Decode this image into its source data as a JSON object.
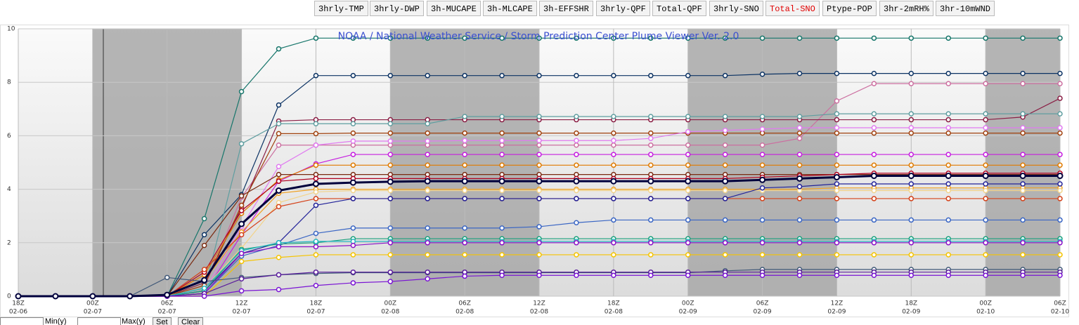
{
  "buttons": [
    "3hrly-TMP",
    "3hrly-DWP",
    "3h-MUCAPE",
    "3h-MLCAPE",
    "3h-EFFSHR",
    "3hrly-QPF",
    "Total-QPF",
    "3hrly-SNO",
    "Total-SNO",
    "Ptype-POP",
    "3hr-2mRH%",
    "3hr-10mWND"
  ],
  "active_button": 8,
  "controls": {
    "min_label": "Min(y)",
    "max_label": "Max(y)",
    "set": "Set",
    "clear": "Clear"
  },
  "chart_data": {
    "type": "line",
    "title": "NOAA / National Weather Service / Storm Prediction Center Plume Viewer Ver. 2.0",
    "categories": [
      {
        "time": "18Z",
        "date": "02-06"
      },
      null,
      {
        "time": "00Z",
        "date": "02-07"
      },
      null,
      {
        "time": "06Z",
        "date": "02-07"
      },
      null,
      {
        "time": "12Z",
        "date": "02-07"
      },
      null,
      {
        "time": "18Z",
        "date": "02-07"
      },
      null,
      {
        "time": "00Z",
        "date": "02-08"
      },
      null,
      {
        "time": "06Z",
        "date": "02-08"
      },
      null,
      {
        "time": "12Z",
        "date": "02-08"
      },
      null,
      {
        "time": "18Z",
        "date": "02-08"
      },
      null,
      {
        "time": "00Z",
        "date": "02-09"
      },
      null,
      {
        "time": "06Z",
        "date": "02-09"
      },
      null,
      {
        "time": "12Z",
        "date": "02-09"
      },
      null,
      {
        "time": "18Z",
        "date": "02-09"
      },
      null,
      {
        "time": "00Z",
        "date": "02-10"
      },
      null,
      {
        "time": "06Z",
        "date": "02-10"
      }
    ],
    "ylim": [
      0,
      10
    ],
    "yticks": [
      0,
      2,
      4,
      6,
      8,
      10
    ],
    "grid": true,
    "series": [
      {
        "color": "#17766b",
        "values": [
          0,
          0,
          0,
          0,
          0,
          2.9,
          7.65,
          9.25,
          9.65,
          9.65,
          9.65,
          9.65,
          9.65,
          9.65,
          9.65,
          9.65,
          9.65,
          9.65,
          9.65,
          9.65,
          9.65,
          9.65,
          9.65,
          9.65,
          9.65,
          9.65,
          9.65,
          9.65,
          9.65
        ]
      },
      {
        "color": "#0b3263",
        "values": [
          0,
          0,
          0,
          0,
          0,
          2.3,
          3.8,
          7.15,
          8.25,
          8.25,
          8.25,
          8.25,
          8.25,
          8.25,
          8.25,
          8.25,
          8.25,
          8.25,
          8.25,
          8.25,
          8.3,
          8.33,
          8.33,
          8.33,
          8.33,
          8.33,
          8.33,
          8.33,
          8.33
        ]
      },
      {
        "color": "#cc6fa0",
        "values": [
          0,
          0,
          0,
          0,
          0,
          0.3,
          3.7,
          5.65,
          5.65,
          5.65,
          5.65,
          5.65,
          5.65,
          5.65,
          5.65,
          5.65,
          5.65,
          5.65,
          5.65,
          5.65,
          5.65,
          5.9,
          7.3,
          7.95,
          7.95,
          7.95,
          7.95,
          7.95,
          7.95
        ]
      },
      {
        "color": "#8a1f45",
        "values": [
          0,
          0,
          0,
          0,
          0,
          0.5,
          3.3,
          6.55,
          6.6,
          6.6,
          6.6,
          6.6,
          6.6,
          6.6,
          6.6,
          6.6,
          6.6,
          6.6,
          6.6,
          6.6,
          6.6,
          6.6,
          6.6,
          6.6,
          6.6,
          6.6,
          6.6,
          6.7,
          7.4
        ]
      },
      {
        "color": "#5f9ea0",
        "values": [
          0,
          0,
          0,
          0,
          0,
          0.2,
          5.7,
          6.45,
          6.45,
          6.45,
          6.45,
          6.45,
          6.72,
          6.72,
          6.72,
          6.72,
          6.72,
          6.72,
          6.72,
          6.72,
          6.72,
          6.72,
          6.82,
          6.82,
          6.82,
          6.82,
          6.82,
          6.82,
          6.82
        ]
      },
      {
        "color": "#a0410d",
        "values": [
          0,
          0,
          0,
          0,
          0,
          0.4,
          3.4,
          6.08,
          6.08,
          6.1,
          6.1,
          6.1,
          6.1,
          6.1,
          6.1,
          6.1,
          6.1,
          6.1,
          6.1,
          6.1,
          6.1,
          6.1,
          6.1,
          6.1,
          6.1,
          6.1,
          6.1,
          6.1,
          6.1
        ]
      },
      {
        "color": "#e07af0",
        "values": [
          0,
          0,
          0,
          0,
          0,
          0.2,
          2.6,
          4.85,
          5.65,
          5.8,
          5.8,
          5.8,
          5.82,
          5.82,
          5.82,
          5.82,
          5.82,
          5.9,
          6.15,
          6.2,
          6.25,
          6.3,
          6.3,
          6.3,
          6.3,
          6.3,
          6.3,
          6.3,
          6.3
        ]
      },
      {
        "color": "#c61ee0",
        "values": [
          0,
          0,
          0,
          0,
          0,
          0.1,
          2.3,
          4.3,
          4.95,
          5.3,
          5.3,
          5.3,
          5.3,
          5.3,
          5.3,
          5.3,
          5.3,
          5.3,
          5.3,
          5.3,
          5.3,
          5.3,
          5.3,
          5.3,
          5.3,
          5.3,
          5.3,
          5.3,
          5.3
        ]
      },
      {
        "color": "#e07b00",
        "values": [
          0,
          0,
          0,
          0,
          0,
          0.8,
          3.1,
          4.35,
          4.9,
          4.9,
          4.9,
          4.9,
          4.9,
          4.9,
          4.9,
          4.9,
          4.9,
          4.9,
          4.9,
          4.9,
          4.9,
          4.9,
          4.9,
          4.9,
          4.9,
          4.9,
          4.9,
          4.9,
          4.9
        ]
      },
      {
        "color": "#7a2a10",
        "values": [
          0,
          0,
          0,
          0,
          0,
          1.9,
          3.75,
          4.55,
          4.55,
          4.55,
          4.55,
          4.55,
          4.55,
          4.55,
          4.55,
          4.55,
          4.55,
          4.55,
          4.55,
          4.55,
          4.55,
          4.55,
          4.55,
          4.55,
          4.55,
          4.55,
          4.55,
          4.55,
          4.55
        ]
      },
      {
        "color": "#b00020",
        "values": [
          0,
          0,
          0,
          0,
          0,
          0.9,
          3.2,
          4.3,
          4.4,
          4.4,
          4.4,
          4.4,
          4.4,
          4.4,
          4.4,
          4.4,
          4.4,
          4.4,
          4.4,
          4.4,
          4.45,
          4.5,
          4.55,
          4.6,
          4.6,
          4.6,
          4.6,
          4.6,
          4.6
        ]
      },
      {
        "color": "#f0a020",
        "values": [
          0,
          0,
          0,
          0,
          0,
          0.6,
          2.4,
          3.85,
          4.0,
          4.0,
          4.0,
          4.0,
          4.0,
          4.0,
          4.0,
          4.0,
          4.0,
          4.0,
          4.0,
          4.0,
          4.0,
          4.0,
          4.05,
          4.05,
          4.05,
          4.05,
          4.05,
          4.05,
          4.05
        ]
      },
      {
        "color": "#f2d38a",
        "values": [
          0,
          0,
          0,
          0,
          0,
          0.3,
          1.8,
          3.5,
          3.9,
          3.95,
          3.95,
          3.95,
          3.95,
          3.95,
          3.95,
          3.95,
          3.95,
          3.95,
          3.95,
          3.95,
          3.95,
          3.95,
          3.95,
          3.95,
          3.95,
          3.95,
          3.95,
          3.95,
          3.95
        ]
      },
      {
        "color": "#d4421a",
        "values": [
          0,
          0,
          0,
          0,
          0,
          1.0,
          2.3,
          3.35,
          3.65,
          3.65,
          3.65,
          3.65,
          3.65,
          3.65,
          3.65,
          3.65,
          3.65,
          3.65,
          3.65,
          3.65,
          3.65,
          3.65,
          3.65,
          3.65,
          3.65,
          3.65,
          3.65,
          3.65,
          3.65
        ]
      },
      {
        "color": "#222299",
        "values": [
          0,
          0,
          0,
          0,
          0,
          0.2,
          1.6,
          2.0,
          3.4,
          3.65,
          3.65,
          3.65,
          3.65,
          3.65,
          3.65,
          3.65,
          3.65,
          3.65,
          3.65,
          3.65,
          4.05,
          4.1,
          4.2,
          4.2,
          4.2,
          4.2,
          4.2,
          4.2,
          4.2
        ]
      },
      {
        "color": "#3a66c4",
        "values": [
          0,
          0,
          0,
          0,
          0,
          0.1,
          1.5,
          1.9,
          2.35,
          2.55,
          2.55,
          2.55,
          2.55,
          2.55,
          2.6,
          2.75,
          2.85,
          2.85,
          2.85,
          2.85,
          2.85,
          2.85,
          2.85,
          2.85,
          2.85,
          2.85,
          2.85,
          2.85,
          2.85
        ]
      },
      {
        "color": "#18a07c",
        "values": [
          0,
          0,
          0,
          0,
          0,
          0.2,
          1.75,
          1.95,
          2.0,
          2.15,
          2.15,
          2.15,
          2.15,
          2.15,
          2.15,
          2.15,
          2.15,
          2.15,
          2.15,
          2.15,
          2.15,
          2.15,
          2.15,
          2.15,
          2.15,
          2.15,
          2.15,
          2.15,
          2.15
        ]
      },
      {
        "color": "#22b5c0",
        "values": [
          0,
          0,
          0,
          0,
          0,
          0.3,
          1.7,
          2.0,
          2.05,
          2.05,
          2.05,
          2.05,
          2.05,
          2.05,
          2.05,
          2.05,
          2.05,
          2.05,
          2.05,
          2.05,
          2.05,
          2.05,
          2.05,
          2.05,
          2.05,
          2.05,
          2.05,
          2.05,
          2.05
        ]
      },
      {
        "color": "#8a10c8",
        "values": [
          0,
          0,
          0,
          0,
          0,
          0.1,
          1.6,
          1.85,
          1.85,
          1.9,
          2.0,
          2.0,
          2.0,
          2.0,
          2.0,
          2.0,
          2.0,
          2.0,
          2.0,
          2.0,
          2.0,
          2.0,
          2.0,
          2.0,
          2.0,
          2.0,
          2.0,
          2.0,
          2.0
        ]
      },
      {
        "color": "#f5c400",
        "values": [
          0,
          0,
          0,
          0,
          0,
          0,
          1.3,
          1.45,
          1.55,
          1.55,
          1.55,
          1.55,
          1.55,
          1.55,
          1.55,
          1.55,
          1.55,
          1.55,
          1.55,
          1.55,
          1.55,
          1.55,
          1.55,
          1.55,
          1.55,
          1.55,
          1.55,
          1.55,
          1.55
        ]
      },
      {
        "color": "#405878",
        "values": [
          0,
          0,
          0,
          0,
          0.7,
          0.55,
          0.7,
          0.8,
          0.85,
          0.88,
          0.88,
          0.88,
          0.88,
          0.88,
          0.88,
          0.88,
          0.88,
          0.88,
          0.88,
          0.95,
          1.0,
          1.0,
          1.0,
          1.0,
          1.0,
          1.0,
          1.0,
          1.0,
          1.0
        ]
      },
      {
        "color": "#5a1c9c",
        "values": [
          0,
          0,
          0,
          0,
          0,
          0.1,
          0.65,
          0.8,
          0.9,
          0.9,
          0.9,
          0.9,
          0.9,
          0.9,
          0.9,
          0.9,
          0.9,
          0.9,
          0.9,
          0.9,
          0.9,
          0.9,
          0.9,
          0.9,
          0.9,
          0.9,
          0.9,
          0.9,
          0.9
        ]
      },
      {
        "color": "#7a14d4",
        "values": [
          0,
          0,
          0,
          0,
          0,
          0,
          0.2,
          0.25,
          0.4,
          0.5,
          0.55,
          0.65,
          0.75,
          0.78,
          0.78,
          0.78,
          0.78,
          0.78,
          0.78,
          0.78,
          0.78,
          0.78,
          0.78,
          0.78,
          0.78,
          0.78,
          0.78,
          0.78,
          0.78
        ]
      },
      {
        "color": "#00003c",
        "line_width": 3,
        "values": [
          0,
          0,
          0,
          0,
          0.05,
          0.6,
          2.7,
          3.95,
          4.2,
          4.25,
          4.28,
          4.3,
          4.3,
          4.3,
          4.3,
          4.3,
          4.3,
          4.3,
          4.3,
          4.3,
          4.35,
          4.4,
          4.45,
          4.5,
          4.5,
          4.5,
          4.5,
          4.5,
          4.5
        ]
      }
    ]
  }
}
